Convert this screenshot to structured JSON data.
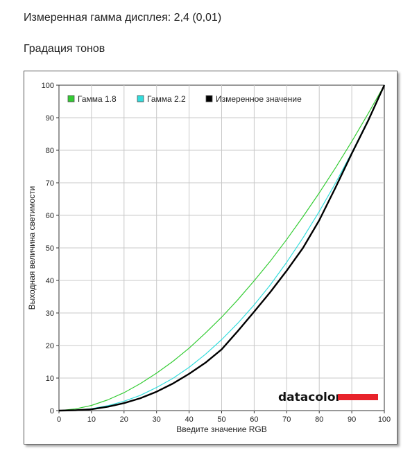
{
  "header": {
    "measured_gamma": "Измеренная гамма дисплея: 2,4 (0,01)",
    "section_title": "Градация тонов"
  },
  "chart_data": {
    "type": "line",
    "title": "",
    "xlabel": "Введите значение RGB",
    "ylabel": "Выходная величина светимости",
    "xlim": [
      0,
      100
    ],
    "ylim": [
      0,
      100
    ],
    "x_ticks": [
      "0",
      "10",
      "20",
      "30",
      "40",
      "50",
      "60",
      "70",
      "80",
      "90",
      "100"
    ],
    "y_ticks": [
      "0",
      "10",
      "20",
      "30",
      "40",
      "50",
      "60",
      "70",
      "80",
      "90",
      "100"
    ],
    "grid": true,
    "legend_position": "top-left",
    "series": [
      {
        "name": "Гамма 1.8",
        "color": "#33cc33",
        "x": [
          0,
          5,
          10,
          15,
          20,
          25,
          30,
          35,
          40,
          45,
          50,
          55,
          60,
          65,
          70,
          75,
          80,
          85,
          90,
          95,
          100
        ],
        "y": [
          0,
          0.5,
          1.6,
          3.3,
          5.5,
          8.3,
          11.5,
          15.1,
          19.2,
          23.8,
          28.7,
          34.1,
          39.9,
          46.0,
          52.6,
          59.6,
          66.9,
          74.6,
          82.7,
          91.2,
          100
        ]
      },
      {
        "name": "Гамма 2.2",
        "color": "#33dddd",
        "x": [
          0,
          5,
          10,
          15,
          20,
          25,
          30,
          35,
          40,
          45,
          50,
          55,
          60,
          65,
          70,
          75,
          80,
          85,
          90,
          95,
          100
        ],
        "y": [
          0,
          0.1,
          0.6,
          1.5,
          2.9,
          4.7,
          7.1,
          9.9,
          13.3,
          17.3,
          21.8,
          26.9,
          32.5,
          38.7,
          45.6,
          53.1,
          61.2,
          69.9,
          79.3,
          89.3,
          100
        ]
      },
      {
        "name": "Измеренное значение",
        "color": "#000000",
        "x": [
          0,
          5,
          10,
          15,
          20,
          25,
          30,
          35,
          40,
          45,
          50,
          55,
          60,
          65,
          70,
          75,
          80,
          85,
          90,
          95,
          100
        ],
        "y": [
          0,
          0.1,
          0.4,
          1.2,
          2.3,
          3.8,
          5.8,
          8.3,
          11.3,
          14.7,
          18.8,
          24.5,
          30.4,
          36.5,
          43.0,
          50.0,
          58.5,
          68.5,
          79.0,
          89.0,
          100
        ]
      }
    ],
    "logo": {
      "text": "datacolor",
      "bar_color": "#e8232b"
    }
  }
}
